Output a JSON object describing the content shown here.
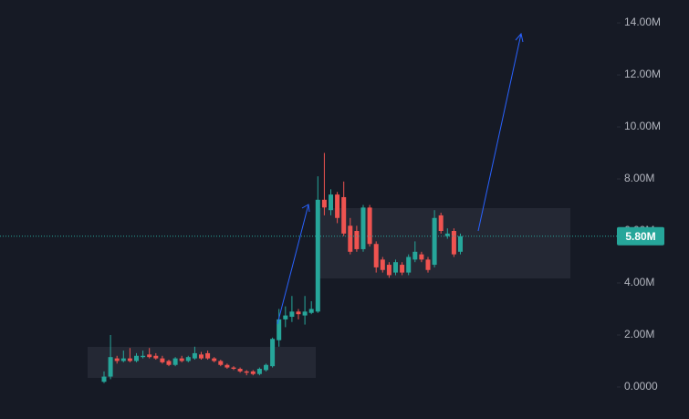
{
  "chart_data": {
    "type": "candlestick",
    "up_color": "#26a69a",
    "down_color": "#ef5350",
    "ylim": [
      -1.23,
      14.88
    ],
    "yticks": [
      {
        "value": 0,
        "label": "0.0000"
      },
      {
        "value": 2,
        "label": "2.00M"
      },
      {
        "value": 4,
        "label": "4.00M"
      },
      {
        "value": 6,
        "label": "6.00M"
      },
      {
        "value": 8,
        "label": "8.00M"
      },
      {
        "value": 10,
        "label": "10.00M"
      },
      {
        "value": 12,
        "label": "12.00M"
      },
      {
        "value": 14,
        "label": "14.00M"
      }
    ],
    "last_price": {
      "value": 5.8,
      "label": "5.80M"
    },
    "open": [
      0.2,
      0.4,
      1.1,
      1.0,
      1.1,
      1.0,
      1.15,
      1.25,
      1.2,
      1.1,
      1.0,
      0.85,
      1.1,
      1.0,
      1.1,
      1.25,
      1.3,
      1.1,
      1.0,
      0.85,
      0.75,
      0.7,
      0.6,
      0.6,
      0.5,
      0.65,
      0.8,
      1.8,
      2.6,
      2.7,
      2.9,
      2.75,
      2.85,
      2.9,
      7.2,
      6.8,
      7.4,
      7.3,
      6.2,
      6.0,
      5.3,
      6.9,
      5.5,
      4.9,
      4.7,
      4.4,
      4.7,
      4.4,
      4.9,
      5.1,
      4.9,
      4.7,
      6.6,
      5.8,
      6.0,
      5.2
    ],
    "high": [
      0.6,
      2.0,
      1.2,
      1.4,
      1.5,
      1.3,
      1.4,
      1.5,
      1.3,
      1.2,
      1.05,
      1.15,
      1.2,
      1.2,
      1.55,
      1.35,
      1.4,
      1.15,
      1.05,
      0.9,
      0.8,
      0.75,
      0.65,
      0.65,
      0.75,
      0.9,
      1.9,
      3.0,
      3.1,
      3.5,
      3.0,
      3.5,
      3.3,
      8.1,
      9.0,
      7.6,
      7.5,
      7.9,
      6.5,
      6.2,
      7.0,
      7.0,
      5.6,
      5.0,
      4.8,
      4.9,
      4.8,
      5.1,
      5.6,
      5.2,
      5.0,
      6.8,
      6.7,
      6.1,
      6.1,
      5.9
    ],
    "low": [
      0.15,
      0.3,
      0.9,
      0.95,
      0.95,
      0.95,
      1.1,
      1.1,
      1.05,
      0.9,
      0.8,
      0.8,
      0.95,
      0.95,
      1.05,
      1.05,
      1.05,
      0.95,
      0.8,
      0.7,
      0.65,
      0.55,
      0.45,
      0.45,
      0.45,
      0.6,
      0.75,
      1.55,
      2.3,
      2.5,
      2.6,
      2.4,
      2.8,
      2.85,
      6.6,
      6.6,
      6.3,
      5.8,
      5.1,
      5.2,
      5.2,
      5.4,
      4.4,
      4.4,
      4.2,
      4.3,
      4.3,
      4.3,
      4.8,
      4.8,
      4.4,
      4.6,
      5.9,
      5.7,
      5.0,
      5.1
    ],
    "close": [
      0.4,
      1.15,
      1.0,
      1.1,
      1.0,
      1.2,
      1.2,
      1.15,
      1.1,
      0.95,
      0.85,
      1.1,
      1.0,
      1.15,
      1.3,
      1.1,
      1.1,
      1.0,
      0.85,
      0.75,
      0.7,
      0.6,
      0.55,
      0.5,
      0.7,
      0.85,
      1.85,
      2.6,
      2.75,
      2.9,
      2.8,
      2.9,
      3.0,
      7.2,
      6.9,
      7.4,
      6.5,
      5.9,
      5.2,
      5.3,
      6.9,
      5.5,
      4.6,
      4.5,
      4.3,
      4.8,
      4.4,
      5.0,
      5.2,
      4.9,
      4.5,
      6.5,
      6.0,
      5.9,
      5.1,
      5.8
    ]
  }
}
